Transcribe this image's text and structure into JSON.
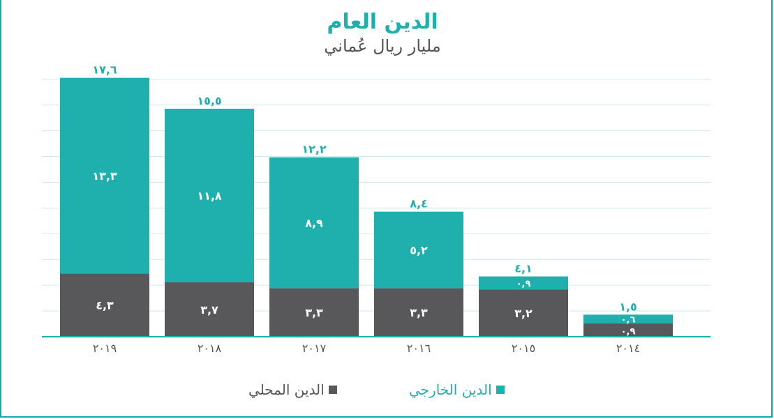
{
  "colors": {
    "external": "#1fb0ae",
    "domestic": "#58585b",
    "axis": "#1fb0ae",
    "grid": "#cfe9e9",
    "frame": "#1aa6a6"
  },
  "chart_data": {
    "type": "bar",
    "stacked": true,
    "title": "الدين العام",
    "subtitle": "مليار ريال عُماني",
    "categories": [
      "٢٠١٩",
      "٢٠١٨",
      "٢٠١٧",
      "٢٠١٦",
      "٢٠١٥",
      "٢٠١٤"
    ],
    "series": [
      {
        "name": "الدين المحلي",
        "values": [
          4.3,
          3.7,
          3.3,
          3.3,
          3.2,
          0.9
        ],
        "labels": [
          "٤,٣",
          "٣,٧",
          "٣,٣",
          "٣,٣",
          "٣,٢",
          "٠,٩"
        ]
      },
      {
        "name": "الدين الخارجي",
        "values": [
          13.3,
          11.8,
          8.9,
          5.2,
          0.9,
          0.6
        ],
        "labels": [
          "١٣,٣",
          "١١,٨",
          "٨,٩",
          "٥,٢",
          "٠,٩",
          "٠,٦"
        ]
      }
    ],
    "totals": [
      17.6,
      15.5,
      12.2,
      8.4,
      4.1,
      1.5
    ],
    "total_labels": [
      "١٧,٦",
      "١٥,٥",
      "١٢,٢",
      "٨,٤",
      "٤,١",
      "١,٥"
    ],
    "ylim": [
      0,
      20
    ],
    "grid": true,
    "legend_position": "bottom",
    "legend": {
      "external": "الدين الخارجي",
      "domestic": "الدين المحلي"
    }
  }
}
